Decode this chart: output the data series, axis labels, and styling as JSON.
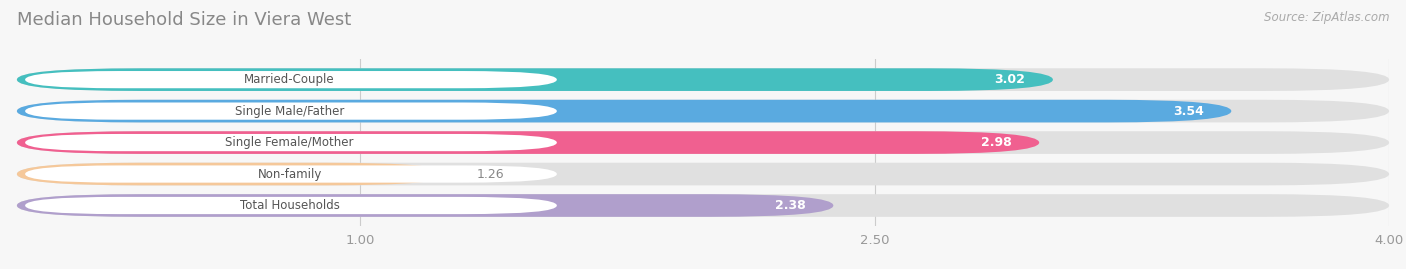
{
  "title": "Median Household Size in Viera West",
  "source": "Source: ZipAtlas.com",
  "categories": [
    "Married-Couple",
    "Single Male/Father",
    "Single Female/Mother",
    "Non-family",
    "Total Households"
  ],
  "values": [
    3.02,
    3.54,
    2.98,
    1.26,
    2.38
  ],
  "bar_colors": [
    "#45bfbf",
    "#5aaae0",
    "#f06090",
    "#f5c89a",
    "#b09fcc"
  ],
  "label_bg_color": "#ffffff",
  "track_color": "#e0e0e0",
  "bg_color": "#f7f7f7",
  "xmin": 0.0,
  "xmax": 4.0,
  "xticks": [
    1.0,
    2.5,
    4.0
  ],
  "value_label_color": "#ffffff",
  "category_label_color": "#555555",
  "title_color": "#888888",
  "source_color": "#aaaaaa",
  "title_fontsize": 13,
  "bar_height": 0.72,
  "bar_gap": 1.0,
  "figsize": [
    14.06,
    2.69
  ],
  "dpi": 100
}
